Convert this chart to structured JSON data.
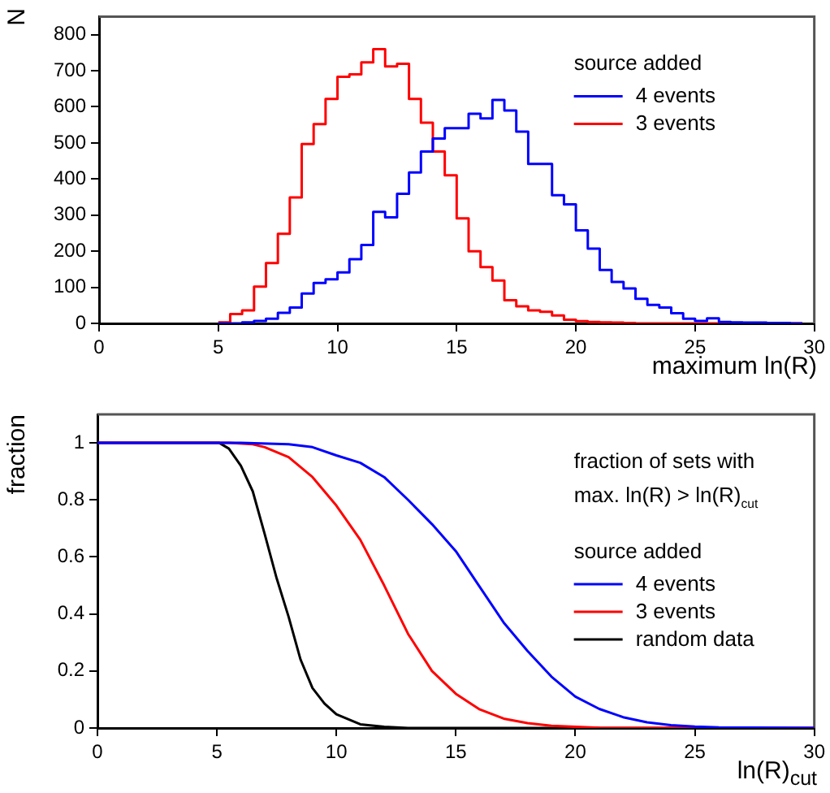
{
  "chart_data": [
    {
      "type": "histogram",
      "xlabel": "maximum ln(R)",
      "ylabel": "N",
      "legend_title": "source added",
      "legend": "top right",
      "grid": false,
      "bins": [
        5,
        5.5,
        6,
        6.5,
        7,
        7.5,
        8,
        8.5,
        9,
        9.5,
        10,
        10.5,
        11,
        11.5,
        12,
        12.5,
        13,
        13.5,
        14,
        14.5,
        15,
        15.5,
        16,
        16.5,
        17,
        17.5,
        18,
        18.5,
        19,
        19.5,
        20,
        20.5,
        21,
        21.5,
        22,
        22.5,
        23,
        23.5,
        24,
        24.5,
        25,
        25.5,
        26,
        26.5,
        27,
        27.5,
        28,
        28.5,
        29,
        29.5
      ],
      "series": [
        {
          "name": "4 events",
          "color": "#0000ff",
          "values": [
            0,
            0,
            3,
            7,
            13,
            29,
            44,
            83,
            112,
            122,
            141,
            178,
            217,
            309,
            294,
            359,
            418,
            476,
            512,
            541,
            541,
            581,
            568,
            619,
            590,
            531,
            442,
            442,
            355,
            330,
            258,
            207,
            148,
            115,
            97,
            68,
            51,
            44,
            28,
            13,
            7,
            14,
            4,
            3,
            2,
            2,
            1,
            1,
            0
          ]
        },
        {
          "name": "3 events",
          "color": "#ff0000",
          "values": [
            3,
            26,
            36,
            102,
            167,
            248,
            349,
            497,
            552,
            622,
            683,
            690,
            723,
            760,
            712,
            719,
            622,
            556,
            476,
            410,
            291,
            200,
            156,
            119,
            64,
            47,
            36,
            32,
            22,
            10,
            6,
            4,
            3,
            2,
            1,
            0,
            0,
            0,
            0,
            0,
            0,
            0,
            0,
            0,
            0,
            0,
            0,
            0,
            0
          ]
        }
      ],
      "xlim": [
        0,
        30
      ],
      "xticks": [
        0,
        5,
        10,
        15,
        20,
        25,
        30
      ],
      "ylim": [
        0,
        850
      ],
      "yticks": [
        0,
        100,
        200,
        300,
        400,
        500,
        600,
        700,
        800
      ]
    },
    {
      "type": "line",
      "xlabel": "ln(R)$_{cut}$",
      "ylabel": "fraction",
      "legend_title": "source added",
      "legend": "right",
      "grid": false,
      "marker": "none",
      "line_style": "solid",
      "annotations": [
        "fraction of sets with",
        "max. ln(R) > ln(R)$_{cut}$"
      ],
      "series": [
        {
          "name": "4 events",
          "color": "#0000ff",
          "x": [
            0,
            6,
            8,
            9,
            10,
            11,
            12,
            13,
            14,
            15,
            16,
            17,
            18,
            19,
            20,
            21,
            22,
            23,
            24,
            25,
            26,
            30
          ],
          "values": [
            1,
            1,
            0.995,
            0.985,
            0.956,
            0.93,
            0.88,
            0.8,
            0.715,
            0.62,
            0.495,
            0.37,
            0.27,
            0.18,
            0.11,
            0.067,
            0.038,
            0.02,
            0.01,
            0.005,
            0.002,
            0
          ]
        },
        {
          "name": "3 events",
          "color": "#ff0000",
          "x": [
            0,
            5.5,
            6.5,
            7,
            8,
            9,
            10,
            11,
            12,
            13,
            14,
            15,
            16,
            17,
            18,
            19,
            20,
            21,
            22,
            30
          ],
          "values": [
            1,
            1,
            0.995,
            0.985,
            0.95,
            0.88,
            0.78,
            0.66,
            0.5,
            0.33,
            0.2,
            0.12,
            0.065,
            0.033,
            0.017,
            0.008,
            0.004,
            0.001,
            0,
            0
          ]
        },
        {
          "name": "random data",
          "color": "#000000",
          "x": [
            0,
            5.1,
            5.5,
            6,
            6.5,
            7,
            7.5,
            8,
            8.5,
            9,
            9.5,
            10,
            11,
            12,
            13,
            30
          ],
          "values": [
            1,
            1,
            0.98,
            0.92,
            0.83,
            0.68,
            0.525,
            0.39,
            0.24,
            0.14,
            0.086,
            0.048,
            0.013,
            0.004,
            0,
            0
          ]
        }
      ],
      "xlim": [
        0,
        30
      ],
      "xticks": [
        0,
        5,
        10,
        15,
        20,
        25,
        30
      ],
      "ylim": [
        0,
        1.1
      ],
      "yticks": [
        0,
        0.2,
        0.4,
        0.6,
        0.8,
        1
      ]
    }
  ]
}
